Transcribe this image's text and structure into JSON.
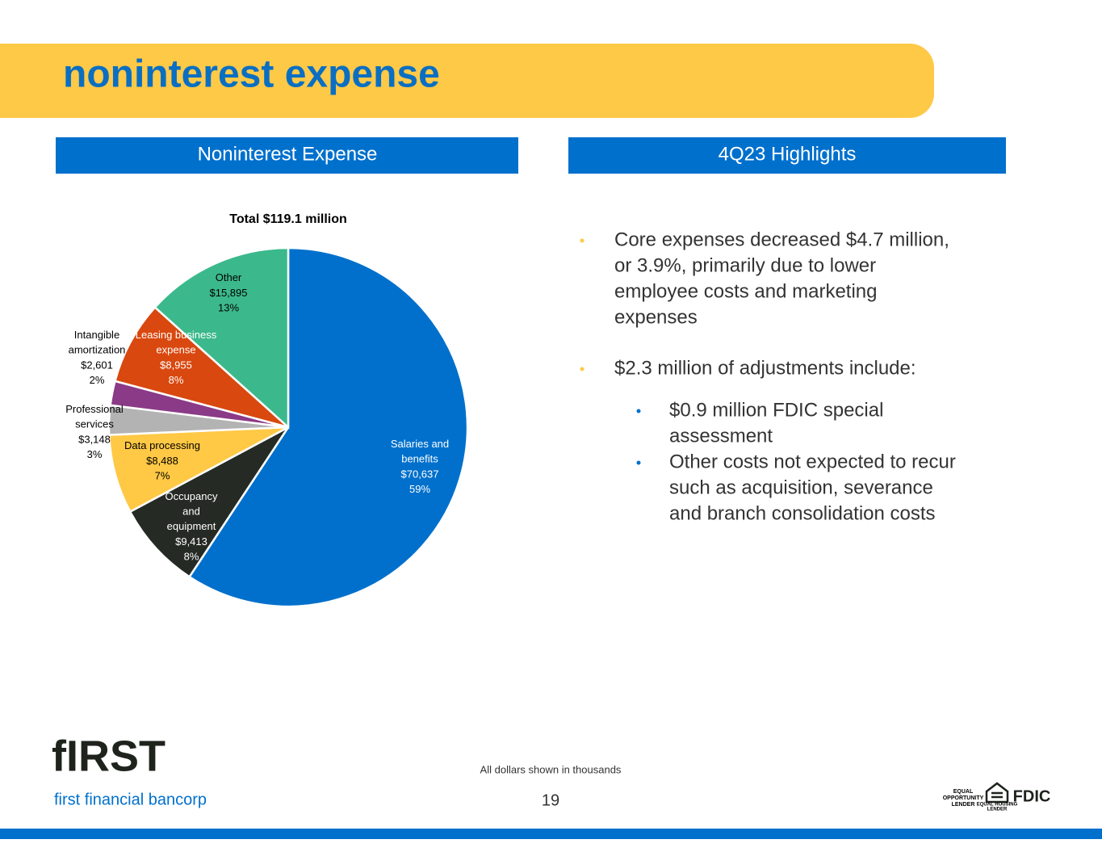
{
  "header": {
    "title": "noninterest expense"
  },
  "panels": {
    "left": "Noninterest Expense",
    "right": "4Q23 Highlights"
  },
  "chart_data": {
    "type": "pie",
    "title": "Total $119.1 million",
    "categories": [
      "Salaries and benefits",
      "Occupancy and equipment",
      "Data processing",
      "Professional services",
      "Intangible amortization",
      "Leasing business expense",
      "Other"
    ],
    "values": [
      70637,
      9413,
      8488,
      3148,
      2601,
      8955,
      15895
    ],
    "value_labels": [
      "$70,637",
      "$9,413",
      "$8,488",
      "$3,148",
      "$2,601",
      "$8,955",
      "$15,895"
    ],
    "percents": [
      59,
      8,
      7,
      3,
      2,
      8,
      13
    ],
    "percent_labels": [
      "59%",
      "8%",
      "7%",
      "3%",
      "2%",
      "8%",
      "13%"
    ],
    "colors": [
      "#0070cc",
      "#252a24",
      "#ffc845",
      "#b3b3b3",
      "#8b3a87",
      "#d9480f",
      "#3cb98c"
    ]
  },
  "highlights": [
    {
      "lines": [
        "Core expenses decreased $4.7 million,",
        "or 3.9%, primarily due to lower",
        "employee costs and marketing",
        "expenses"
      ],
      "sub": []
    },
    {
      "lines": [
        "$2.3 million of adjustments include:"
      ],
      "sub": [
        {
          "lines": [
            "$0.9 million FDIC special",
            "assessment"
          ]
        },
        {
          "lines": [
            "Other costs not expected to recur",
            "such as acquisition, severance",
            "and branch consolidation costs"
          ]
        }
      ]
    }
  ],
  "footer": {
    "note": "All dollars shown in thousands",
    "page": "19",
    "logo": "fIRST",
    "company": "first financial bancorp",
    "eol": [
      "EQUAL",
      "OPPORTUNITY",
      "LENDER"
    ],
    "ehl": [
      "EQUAL HOUSING",
      "LENDER"
    ],
    "fdic": "FDIC"
  }
}
